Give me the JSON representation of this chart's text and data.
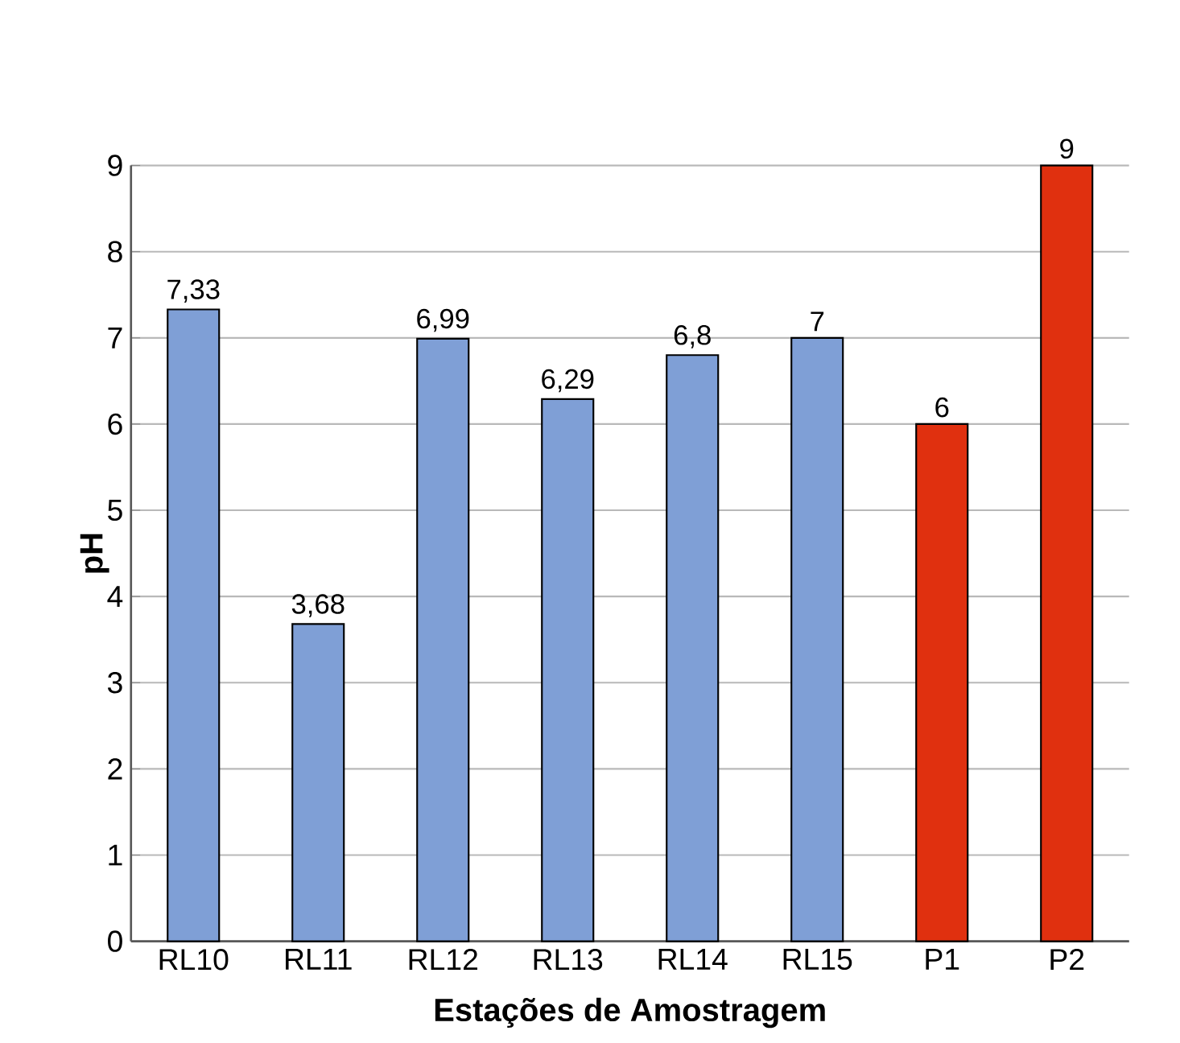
{
  "chart_data": {
    "type": "bar",
    "xlabel": "Estações de Amostragem",
    "ylabel": "pH",
    "categories": [
      "RL10",
      "RL11",
      "RL12",
      "RL13",
      "RL14",
      "RL15",
      "P1",
      "P2"
    ],
    "values": [
      7.33,
      3.68,
      6.99,
      6.29,
      6.8,
      7,
      6,
      9
    ],
    "value_labels": [
      "7,33",
      "3,68",
      "6,99",
      "6,29",
      "6,8",
      "7",
      "6",
      "9"
    ],
    "colors": [
      "#7f9fd6",
      "#7f9fd6",
      "#7f9fd6",
      "#7f9fd6",
      "#7f9fd6",
      "#7f9fd6",
      "#e0300f",
      "#e0300f"
    ],
    "ylim": [
      0,
      9
    ],
    "yticks": [
      0,
      1,
      2,
      3,
      4,
      5,
      6,
      7,
      8,
      9
    ],
    "grid": "y"
  }
}
